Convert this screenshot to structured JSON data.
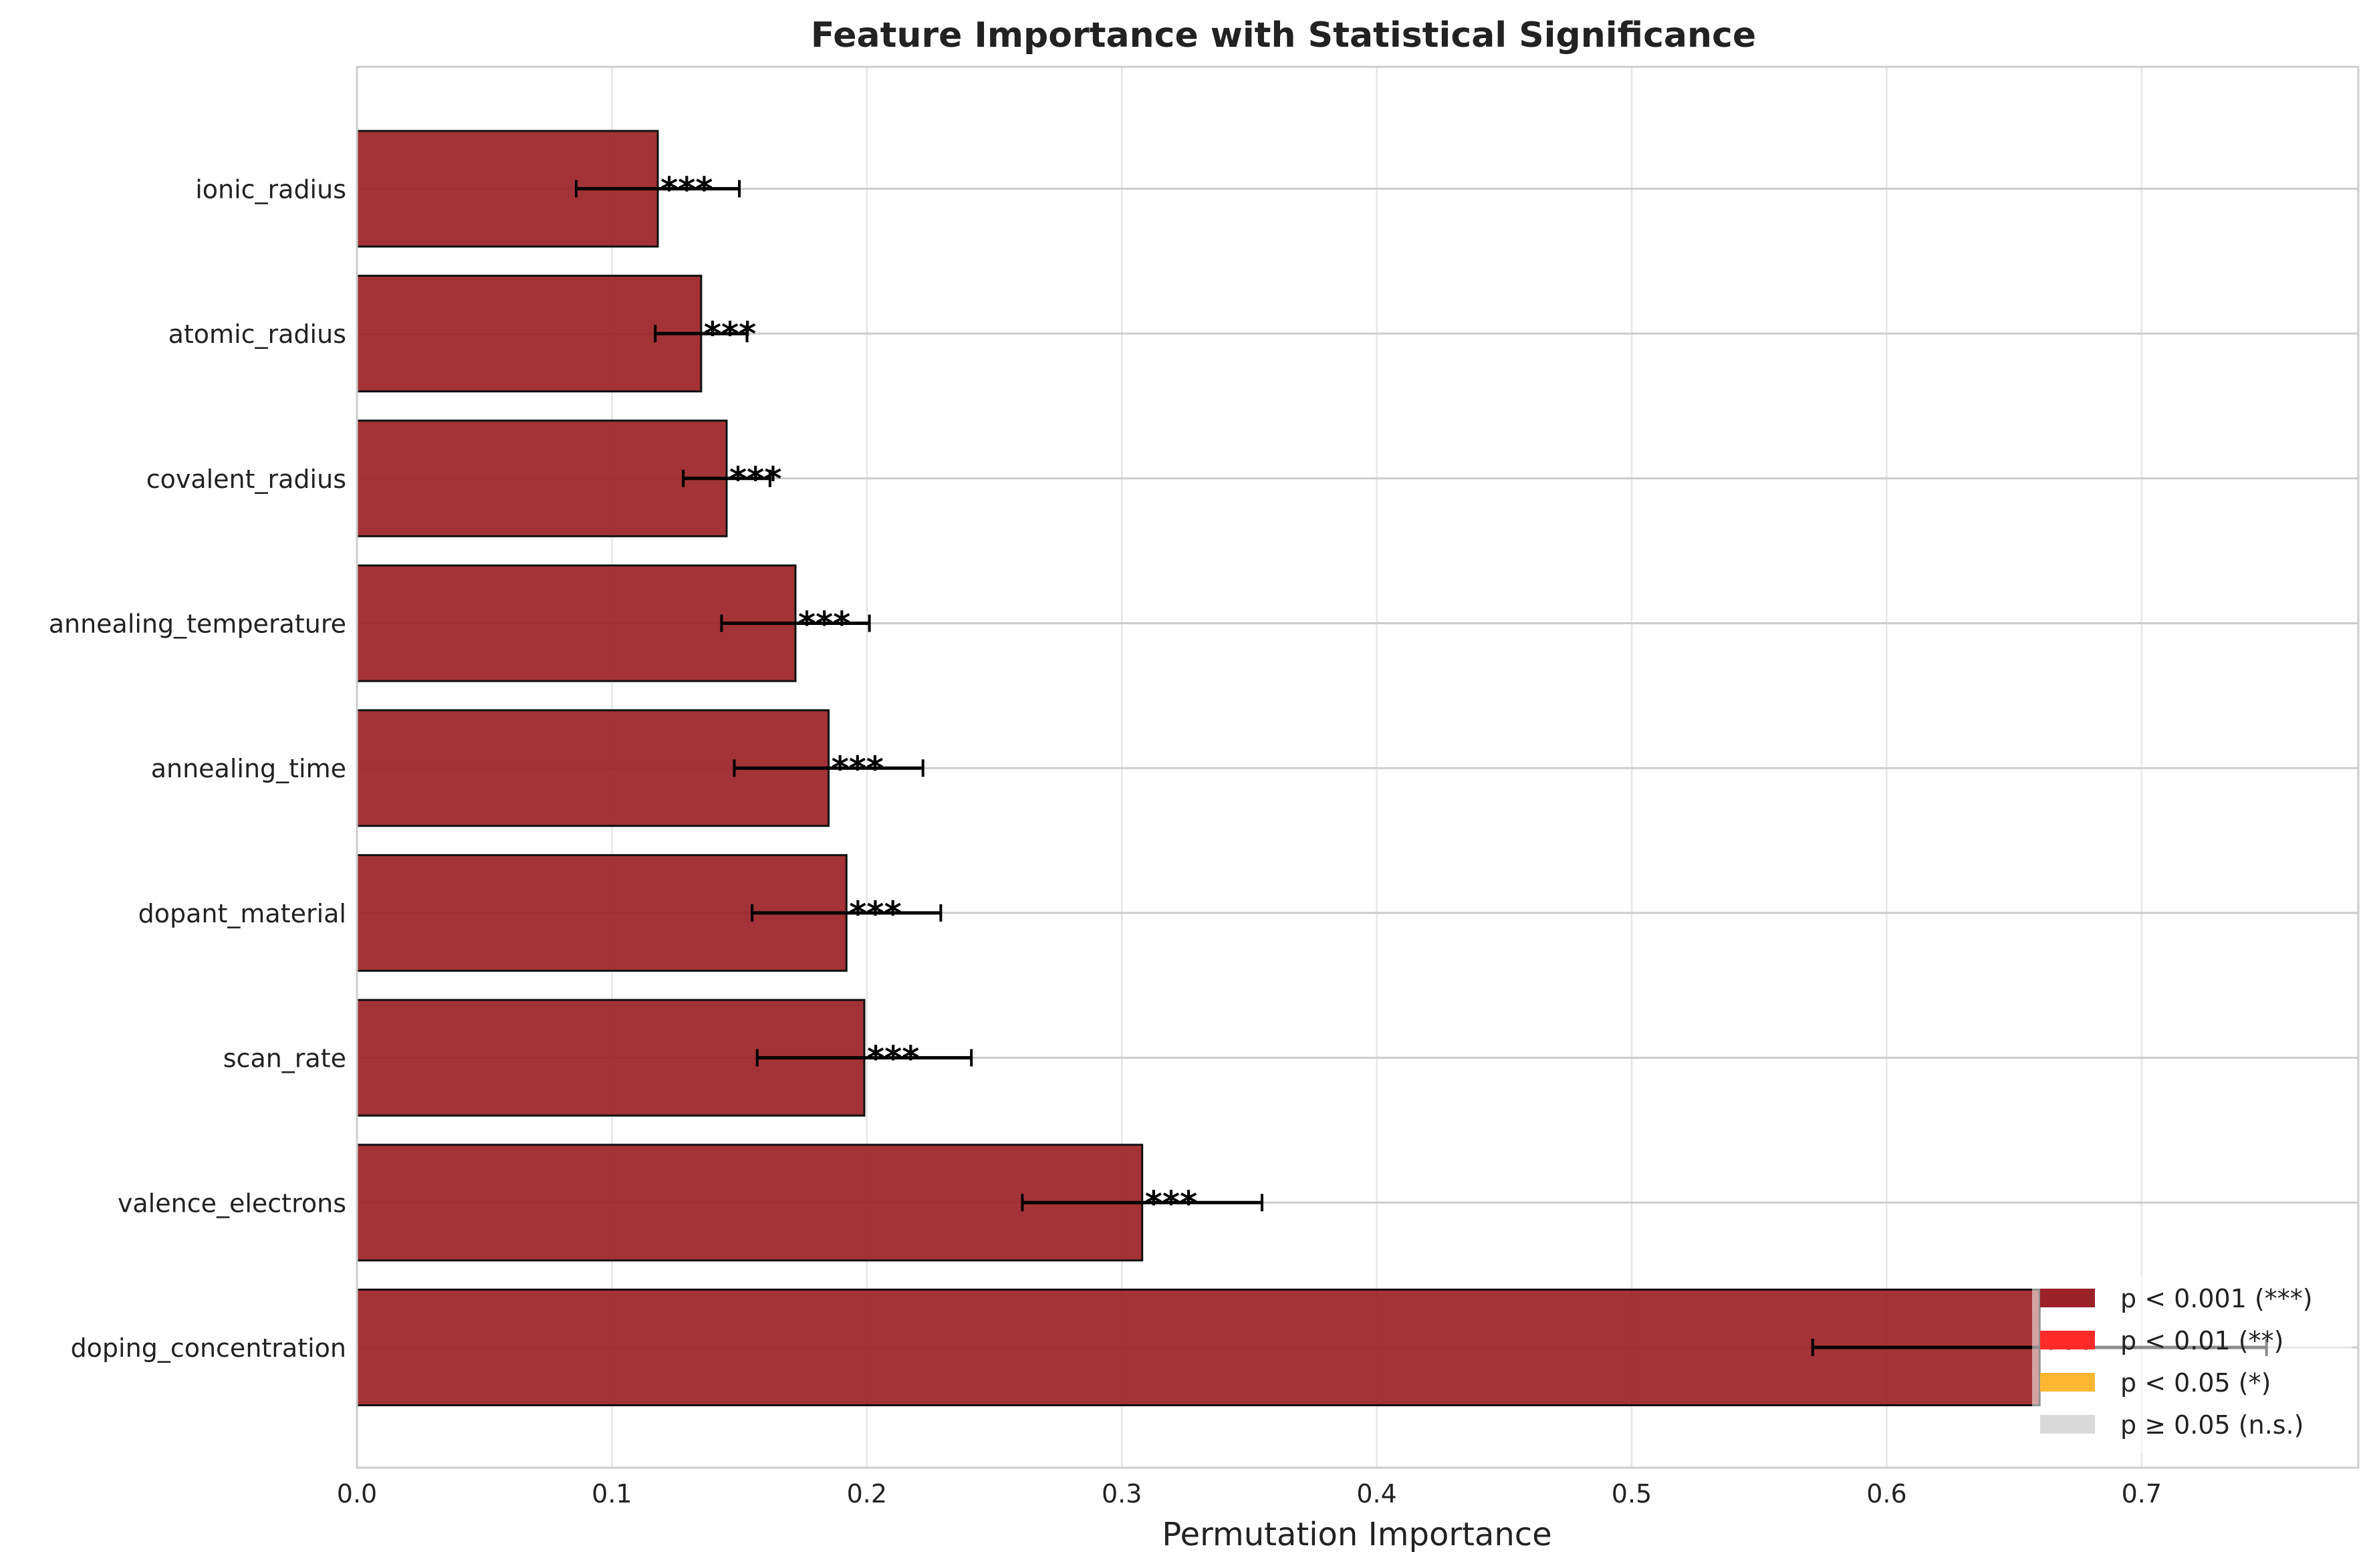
{
  "chart_data": {
    "type": "bar",
    "orientation": "horizontal",
    "title": "Feature Importance with Statistical Significance",
    "xlabel": "Permutation Importance",
    "ylabel": "",
    "xlim": [
      0,
      0.785
    ],
    "xticks": [
      "0.0",
      "0.1",
      "0.2",
      "0.3",
      "0.4",
      "0.5",
      "0.6",
      "0.7"
    ],
    "grid": true,
    "categories": [
      "doping_concentration",
      "valence_electrons",
      "scan_rate",
      "dopant_material",
      "annealing_time",
      "annealing_temperature",
      "covalent_radius",
      "atomic_radius",
      "ionic_radius"
    ],
    "values": [
      0.66,
      0.308,
      0.199,
      0.192,
      0.185,
      0.172,
      0.145,
      0.135,
      0.118
    ],
    "errors": [
      0.089,
      0.047,
      0.042,
      0.037,
      0.037,
      0.029,
      0.017,
      0.018,
      0.032
    ],
    "significance": [
      "***",
      "***",
      "***",
      "***",
      "***",
      "***",
      "***",
      "***",
      "***"
    ],
    "bar_color": "#9b2226",
    "legend": {
      "position": "lower right",
      "entries": [
        {
          "label": "p < 0.001 (***)",
          "color": "#9b2226"
        },
        {
          "label": "p < 0.01 (**)",
          "color": "#ff2a2a"
        },
        {
          "label": "p < 0.05 (*)",
          "color": "#ffb733"
        },
        {
          "label": "p ≥ 0.05 (n.s.)",
          "color": "#d9d9d9"
        }
      ]
    }
  }
}
